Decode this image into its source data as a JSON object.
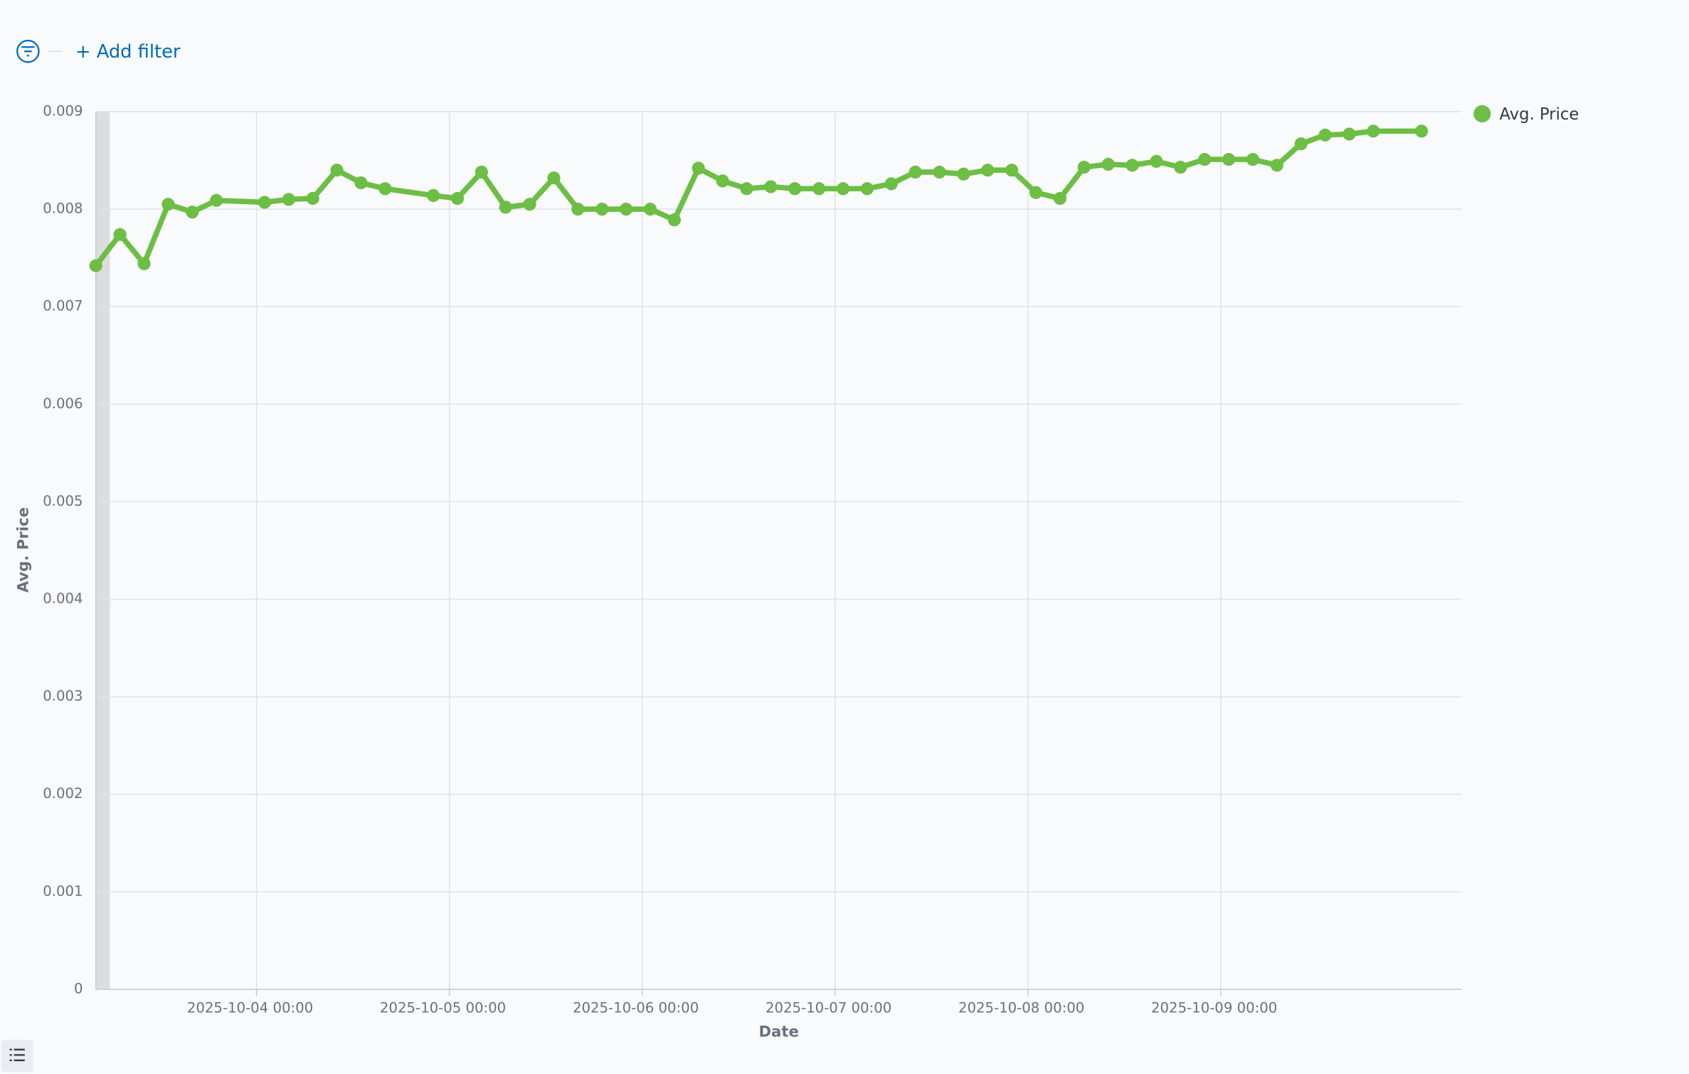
{
  "filter_bar": {
    "add_filter": "+ Add filter"
  },
  "chart_data": {
    "type": "line",
    "x_label": "Date",
    "y_label": "Avg. Price",
    "x": [
      "2025-10-03 04:00",
      "2025-10-03 07:00",
      "2025-10-03 10:00",
      "2025-10-03 13:00",
      "2025-10-03 16:00",
      "2025-10-03 19:00",
      "2025-10-04 01:00",
      "2025-10-04 04:00",
      "2025-10-04 07:00",
      "2025-10-04 10:00",
      "2025-10-04 13:00",
      "2025-10-04 16:00",
      "2025-10-04 22:00",
      "2025-10-05 01:00",
      "2025-10-05 04:00",
      "2025-10-05 07:00",
      "2025-10-05 10:00",
      "2025-10-05 13:00",
      "2025-10-05 16:00",
      "2025-10-05 19:00",
      "2025-10-05 22:00",
      "2025-10-06 01:00",
      "2025-10-06 04:00",
      "2025-10-06 07:00",
      "2025-10-06 10:00",
      "2025-10-06 13:00",
      "2025-10-06 16:00",
      "2025-10-06 19:00",
      "2025-10-06 22:00",
      "2025-10-07 01:00",
      "2025-10-07 04:00",
      "2025-10-07 07:00",
      "2025-10-07 10:00",
      "2025-10-07 13:00",
      "2025-10-07 16:00",
      "2025-10-07 19:00",
      "2025-10-07 22:00",
      "2025-10-08 01:00",
      "2025-10-08 04:00",
      "2025-10-08 07:00",
      "2025-10-08 10:00",
      "2025-10-08 13:00",
      "2025-10-08 16:00",
      "2025-10-08 19:00",
      "2025-10-08 22:00",
      "2025-10-09 01:00",
      "2025-10-09 04:00",
      "2025-10-09 07:00",
      "2025-10-09 10:00",
      "2025-10-09 13:00",
      "2025-10-09 16:00",
      "2025-10-09 19:00",
      "2025-10-10 01:00"
    ],
    "series": [
      {
        "name": "Avg. Price",
        "color": "#6dbe45",
        "values": [
          0.00742,
          0.00774,
          0.00744,
          0.00805,
          0.00797,
          0.00809,
          0.00807,
          0.0081,
          0.00811,
          0.0084,
          0.00827,
          0.00821,
          0.00814,
          0.00811,
          0.00838,
          0.00802,
          0.00805,
          0.00832,
          0.008,
          0.008,
          0.008,
          0.008,
          0.00789,
          0.00842,
          0.00829,
          0.00821,
          0.00823,
          0.00821,
          0.00821,
          0.00821,
          0.00821,
          0.00826,
          0.00838,
          0.00838,
          0.00836,
          0.0084,
          0.0084,
          0.00817,
          0.00811,
          0.00843,
          0.00846,
          0.00845,
          0.00849,
          0.00843,
          0.00851,
          0.00851,
          0.00851,
          0.00845,
          0.00867,
          0.00876,
          0.00877,
          0.0088,
          0.0088
        ]
      }
    ],
    "xlim": [
      "2025-10-03 04:00",
      "2025-10-10 06:00"
    ],
    "xticks": [
      "2025-10-04 00:00",
      "2025-10-05 00:00",
      "2025-10-06 00:00",
      "2025-10-07 00:00",
      "2025-10-08 00:00",
      "2025-10-09 00:00"
    ],
    "ylim": [
      0,
      0.009
    ],
    "yticks": [
      0,
      0.001,
      0.002,
      0.003,
      0.004,
      0.005,
      0.006,
      0.007,
      0.008,
      0.009
    ],
    "grid": true,
    "legend": "right"
  }
}
